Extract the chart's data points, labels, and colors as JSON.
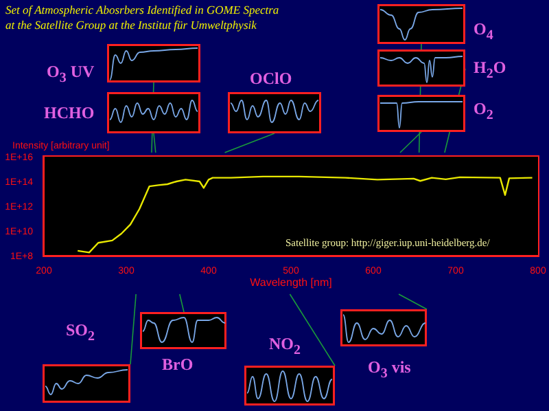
{
  "chart_data": {
    "type": "line",
    "title": "Set of Atmospheric Abosrbers Identified in GOME Spectra",
    "subtitle": "at the Satellite Group at the Institut für Umweltphysik",
    "xlabel": "Wavelength [nm]",
    "ylabel": "Intensity [arbitrary unit]",
    "x": [
      241,
      255,
      266,
      283,
      294,
      305,
      316,
      328,
      339,
      350,
      361,
      372,
      389,
      394,
      400,
      405,
      427,
      466,
      510,
      566,
      605,
      649,
      657,
      671,
      688,
      705,
      754,
      760,
      765,
      793
    ],
    "series": [
      {
        "color": "#e8e800",
        "values": [
          250000000.0,
          180000000.0,
          1100000000.0,
          1700000000.0,
          6000000000.0,
          33000000000.0,
          600000000000.0,
          40000000000000.0,
          50000000000000.0,
          60000000000000.0,
          100000000000000.0,
          140000000000000.0,
          100000000000000.0,
          30000000000000.0,
          140000000000000.0,
          200000000000000.0,
          200000000000000.0,
          250000000000000.0,
          250000000000000.0,
          200000000000000.0,
          140000000000000.0,
          170000000000000.0,
          110000000000000.0,
          200000000000000.0,
          150000000000000.0,
          220000000000000.0,
          200000000000000.0,
          8000000000000.0,
          180000000000000.0,
          200000000000000.0
        ]
      }
    ],
    "xlim": [
      200,
      800
    ],
    "xticks": [
      200,
      300,
      400,
      500,
      600,
      700,
      800
    ],
    "ylim": [
      100000000.0,
      1e+16
    ],
    "yticks": [
      {
        "value": 100000000.0,
        "label": "1E+8"
      },
      {
        "value": 10000000000.0,
        "label": "1E+10"
      },
      {
        "value": 1000000000000.0,
        "label": "1E+12"
      },
      {
        "value": 100000000000000.0,
        "label": "1E+14"
      },
      {
        "value": 1e+16,
        "label": "1E+16"
      }
    ],
    "log": true,
    "grid": false,
    "legend": false,
    "marker": "none",
    "line_style": "solid",
    "annotations": [
      "O$_{3}$ UV",
      "HCHO",
      "OClO",
      "O$_{4}$",
      "H$_{2}$O",
      "O$_{2}$",
      "SO$_{2}$",
      "BrO",
      "NO$_{2}$",
      "O$_{3}$ vis",
      "Satellite group: http://giger.iup.uni-heidelberg.de/"
    ]
  }
}
